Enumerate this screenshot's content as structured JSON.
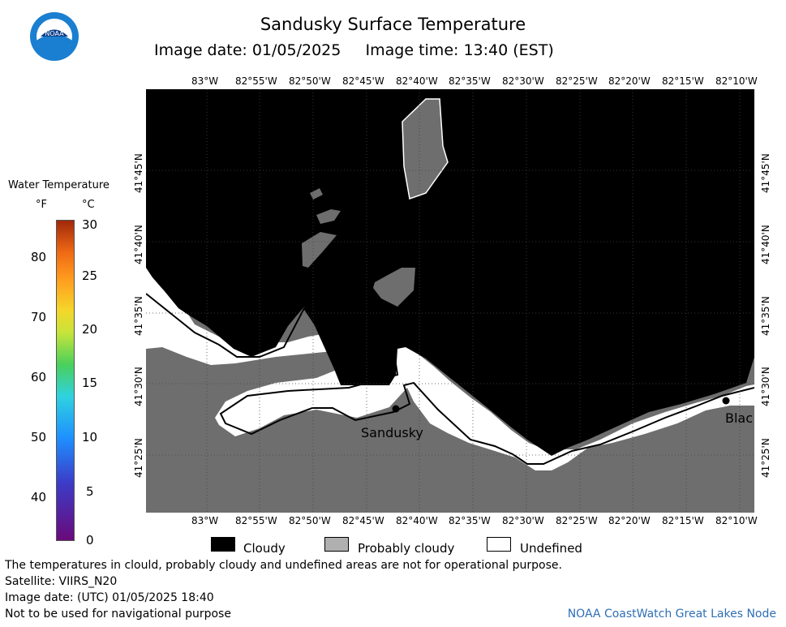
{
  "header": {
    "title": "Sandusky Surface Temperature",
    "subtitle": "Image date: 01/05/2025     Image time: 13:40 (EST)"
  },
  "logo": {
    "text": "NOAA",
    "icon": "noaa-logo-icon"
  },
  "colorbar": {
    "title": "Water Temperature",
    "unit_f": "°F",
    "unit_c": "°C",
    "f_ticks": [
      "80",
      "70",
      "60",
      "50",
      "40"
    ],
    "c_ticks": [
      "30",
      "25",
      "20",
      "15",
      "10",
      "5",
      "0"
    ]
  },
  "map": {
    "lon_labels": [
      "83°W",
      "82°55'W",
      "82°50'W",
      "82°45'W",
      "82°40'W",
      "82°35'W",
      "82°30'W",
      "82°25'W",
      "82°20'W",
      "82°15'W",
      "82°10'W"
    ],
    "lat_labels": [
      "41°45'N",
      "41°40'N",
      "41°35'N",
      "41°30'N",
      "41°25'N"
    ],
    "places": [
      "Sandusky",
      "Blac"
    ],
    "colors": {
      "cloudy": "#000000",
      "probably_cloudy": "#6e6e6e",
      "undefined": "#ffffff"
    }
  },
  "legend": {
    "cloudy": "Cloudy",
    "probably_cloudy": "Probably cloudy",
    "undefined": "Undefined"
  },
  "notes": {
    "disclaimer": "The temperatures in clould, probably cloudy and undefined areas are not for operational purpose.",
    "satellite": "Satellite: VIIRS_N20",
    "utc_date": "Image date: (UTC) 01/05/2025  18:40",
    "navigation": "Not to be used for navigational purpose",
    "node": "NOAA CoastWatch Great Lakes Node"
  }
}
